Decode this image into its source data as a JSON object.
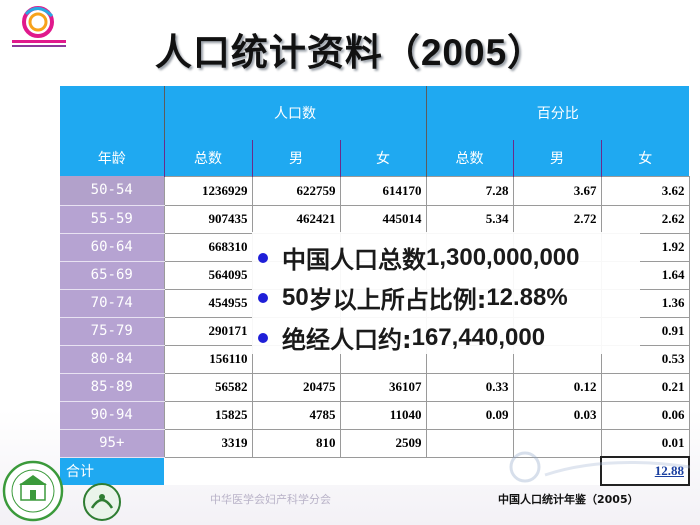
{
  "title": {
    "main": "人口统计资料（",
    "year": "2005",
    "close": "）"
  },
  "table": {
    "group_headers": {
      "population": "人口数",
      "percent": "百分比"
    },
    "col_headers": {
      "age": "年龄",
      "total": "总数",
      "male": "男",
      "female": "女",
      "pct_total": "总数",
      "pct_male": "男",
      "pct_female": "女"
    },
    "rows": [
      {
        "age": "50-54",
        "total": "1236929",
        "male": "622759",
        "female": "614170",
        "pct_total": "7.28",
        "pct_male": "3.67",
        "pct_female": "3.62"
      },
      {
        "age": "55-59",
        "total": "907435",
        "male": "462421",
        "female": "445014",
        "pct_total": "5.34",
        "pct_male": "2.72",
        "pct_female": "2.62"
      },
      {
        "age": "60-64",
        "total": "668310",
        "male": "",
        "female": "",
        "pct_total": "",
        "pct_male": "",
        "pct_female": "1.92"
      },
      {
        "age": "65-69",
        "total": "564095",
        "male": "",
        "female": "",
        "pct_total": "",
        "pct_male": "",
        "pct_female": "1.64"
      },
      {
        "age": "70-74",
        "total": "454955",
        "male": "",
        "female": "",
        "pct_total": "",
        "pct_male": "",
        "pct_female": "1.36"
      },
      {
        "age": "75-79",
        "total": "290171",
        "male": "",
        "female": "",
        "pct_total": "",
        "pct_male": "",
        "pct_female": "0.91"
      },
      {
        "age": "80-84",
        "total": "156110",
        "male": "",
        "female": "",
        "pct_total": "",
        "pct_male": "",
        "pct_female": "0.53"
      },
      {
        "age": "85-89",
        "total": "56582",
        "male": "20475",
        "female": "36107",
        "pct_total": "0.33",
        "pct_male": "0.12",
        "pct_female": "0.21"
      },
      {
        "age": "90-94",
        "total": "15825",
        "male": "4785",
        "female": "11040",
        "pct_total": "0.09",
        "pct_male": "0.03",
        "pct_female": "0.06"
      },
      {
        "age": "95+",
        "total": "3319",
        "male": "810",
        "female": "2509",
        "pct_total": "",
        "pct_male": "",
        "pct_female": "0.01"
      }
    ],
    "total_label": "合计",
    "total_value": "12.88"
  },
  "overlay": {
    "line1_cn": "中国人口总数 ",
    "line1_en": "1,300,000,000",
    "line2_cn_a": "50",
    "line2_cn_b": "岁以上所占比例: ",
    "line2_en": "12.88%",
    "line3_cn": "绝经人口约: ",
    "line3_en": "167,440,000"
  },
  "footer": {
    "org": "中华医学会妇产科学分会",
    "source": "中国人口统计年鉴（2005）"
  },
  "colors": {
    "header_blue": "#1fa9f1",
    "age_purple": "#b6a3d2",
    "bullet_blue": "#1f1fd8"
  }
}
